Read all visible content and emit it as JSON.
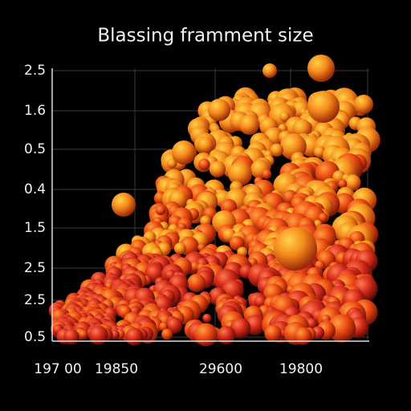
{
  "title": "Blassing framment size",
  "y_labels": [
    "2.5",
    "1.6",
    "0.5",
    "0.4",
    "1.5",
    "2.5",
    "2.5",
    "0.5"
  ],
  "x_labels": [
    "197 00",
    "19850",
    "29600",
    "19800"
  ]
}
